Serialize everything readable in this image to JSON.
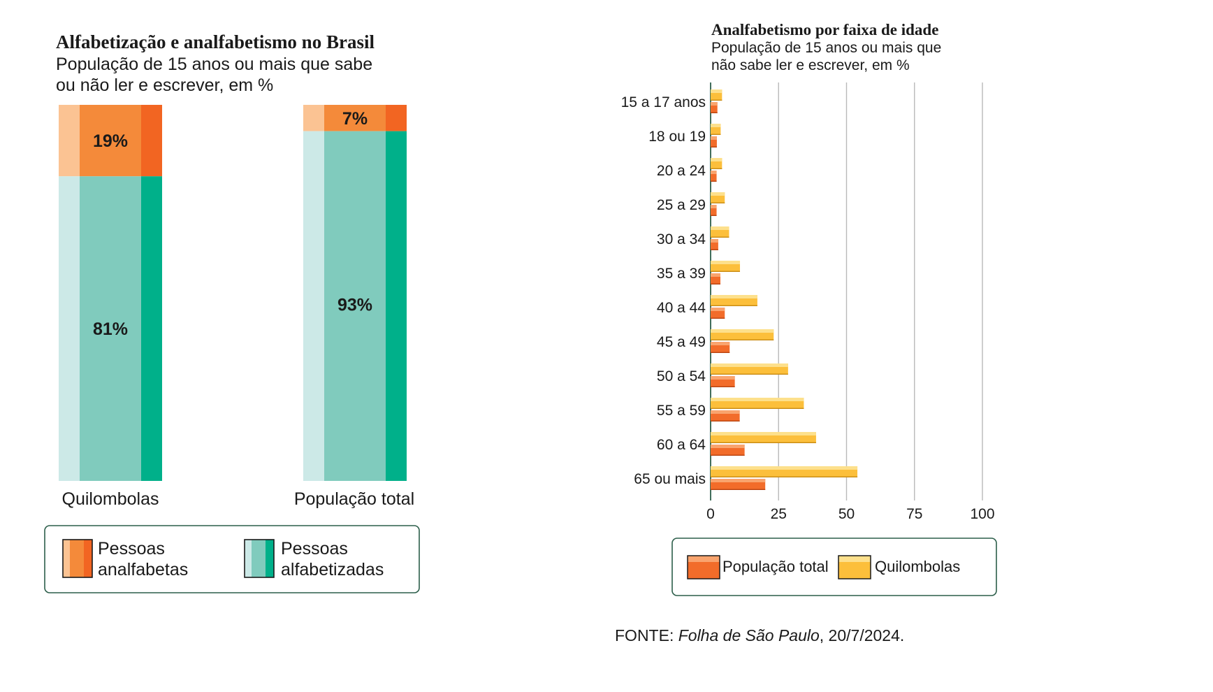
{
  "colors": {
    "illiterate_light": "#fbc393",
    "illiterate_mid": "#f48a3a",
    "illiterate_dark": "#f26522",
    "literate_light": "#cce9e7",
    "literate_mid": "#80cbbd",
    "literate_dark": "#00b08a",
    "bar_total": "#f26c2a",
    "bar_total_top": "#f9a46e",
    "bar_quilombolas": "#fcbf3b",
    "bar_quilombolas_top": "#fde08c",
    "grid": "#b9b9b9",
    "axis": "#2c5e4a"
  },
  "chart_data": [
    {
      "type": "bar",
      "stacked": true,
      "title": "Alfabetização e analfabetismo no Brasil",
      "subtitle_lines": [
        "População de 15 anos ou mais que sabe",
        "ou não ler e escrever, em %"
      ],
      "categories": [
        "Quilombolas",
        "População total"
      ],
      "series": [
        {
          "name": "Pessoas analfabetas",
          "values": [
            19,
            7
          ],
          "labels": [
            "19%",
            "7%"
          ]
        },
        {
          "name": "Pessoas alfabetizadas",
          "values": [
            81,
            93
          ],
          "labels": [
            "81%",
            "93%"
          ]
        }
      ],
      "legend": [
        {
          "lines": [
            "Pessoas",
            "analfabetas"
          ]
        },
        {
          "lines": [
            "Pessoas",
            "alfabetizadas"
          ]
        }
      ],
      "ylim": [
        0,
        100
      ]
    },
    {
      "type": "bar",
      "orientation": "horizontal",
      "title": "Analfabetismo por faixa de idade",
      "subtitle_lines": [
        "População de 15 anos ou mais que",
        "não sabe ler e escrever, em %"
      ],
      "categories": [
        "15 a 17 anos",
        "18 ou 19",
        "20 a 24",
        "25 a 29",
        "30 a 34",
        "35 a 39",
        "40 a 44",
        "45 a 49",
        "50 a 54",
        "55 a 59",
        "60 a 64",
        "65 ou mais"
      ],
      "series": [
        {
          "name": "Quilombolas",
          "values": [
            4.2,
            3.7,
            4.2,
            5.2,
            6.8,
            10.8,
            17.2,
            23.2,
            28.5,
            34.3,
            38.8,
            54.0
          ]
        },
        {
          "name": "População total",
          "values": [
            2.5,
            2.3,
            2.2,
            2.2,
            2.8,
            3.6,
            5.2,
            7.0,
            8.9,
            10.7,
            12.5,
            20.1
          ]
        }
      ],
      "xticks": [
        "0",
        "25",
        "50",
        "75",
        "100"
      ],
      "xlim": [
        0,
        100
      ],
      "legend": [
        "População total",
        "Quilombolas"
      ]
    }
  ],
  "source": {
    "prefix": "FONTE: ",
    "publication": "Folha de São Paulo",
    "date": ", 20/7/2024."
  }
}
